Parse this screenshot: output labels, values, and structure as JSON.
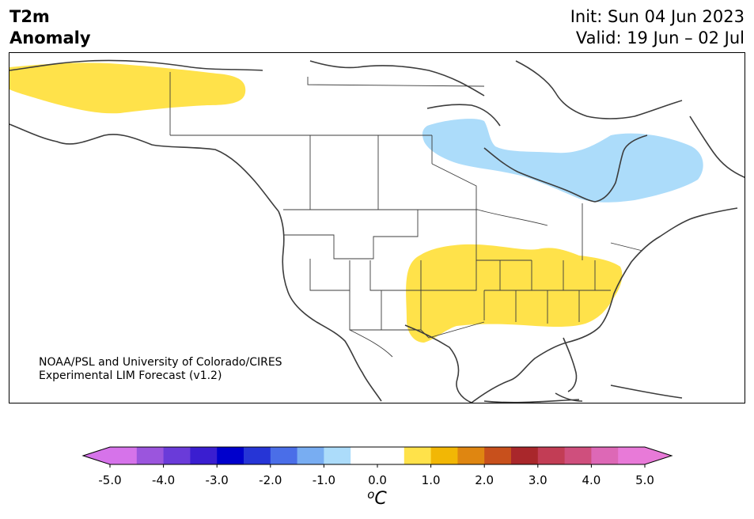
{
  "title": {
    "line1": "T2m",
    "line2": "Anomaly"
  },
  "dates": {
    "init": "Init: Sun 04 Jun 2023",
    "valid": "Valid: 19 Jun – 02 Jul"
  },
  "credit": {
    "line1": "NOAA/PSL and University of Colorado/CIRES",
    "line2": "Experimental LIM Forecast (v1.2)"
  },
  "colorbar": {
    "ticks": [
      "-5.0",
      "-4.0",
      "-3.0",
      "-2.0",
      "-1.0",
      "0.0",
      "1.0",
      "2.0",
      "3.0",
      "4.0",
      "5.0"
    ],
    "units_sup": "o",
    "units": "C",
    "colors": [
      "#d673ea",
      "#9b55dd",
      "#6a3bd9",
      "#3a1ed0",
      "#0000cc",
      "#2635d6",
      "#4a6ee8",
      "#78adf2",
      "#acdcfa",
      "#ffffff",
      "#ffffff",
      "#ffe24a",
      "#f2b705",
      "#df8611",
      "#c8501c",
      "#a9272b",
      "#c23d55",
      "#cf4f7d",
      "#dd68b6",
      "#e87ad8"
    ],
    "under_color": "#d673ea",
    "over_color": "#e87ad8"
  },
  "anomaly_colors": {
    "warm": "#ffe24a",
    "cool": "#acdcfa"
  }
}
